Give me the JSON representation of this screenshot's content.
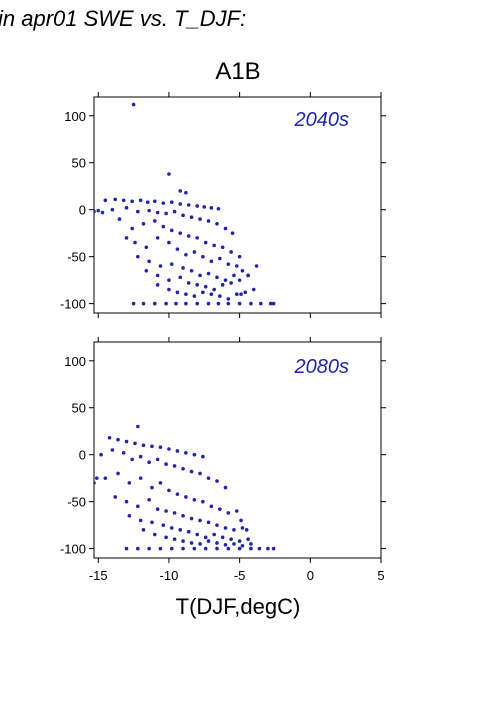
{
  "figure_title": "in apr01 SWE vs. T_DJF:",
  "chart_data": {
    "type": "scatter",
    "title": "A1B",
    "xlabel": "T(DJF,degC)",
    "ylabel": "",
    "xlim": [
      -15.3,
      5
    ],
    "ylim": [
      -110,
      120
    ],
    "x_ticks": [
      -15,
      -10,
      -5,
      0,
      5
    ],
    "x_tick_labels": [
      "-15",
      "-10",
      "-5",
      "0",
      "5"
    ],
    "y_ticks": [
      100,
      50,
      0,
      -50,
      -100
    ],
    "y_tick_labels": [
      "100",
      "50",
      "0",
      "-50",
      "-100"
    ],
    "marker_color": "#1f24a8",
    "panels": [
      {
        "label": "2040s",
        "series": [
          {
            "x": [
              -12.5,
              -10.0,
              -9.2,
              -8.8,
              -14.5,
              -13.8,
              -13.2,
              -12.6,
              -12.0,
              -11.5,
              -11.0,
              -10.4,
              -9.8,
              -9.2,
              -8.6,
              -8.0,
              -7.5,
              -7.0,
              -6.5,
              -14.0,
              -13.0,
              -12.2,
              -11.4,
              -10.8,
              -10.2,
              -9.6,
              -9.0,
              -8.4,
              -7.8,
              -7.2,
              -6.6,
              -6.0,
              -5.5,
              -13.5,
              -12.6,
              -11.8,
              -11.0,
              -10.4,
              -9.8,
              -9.2,
              -8.6,
              -8.0,
              -7.4,
              -6.8,
              -6.2,
              -5.6,
              -5.0,
              -13.0,
              -12.4,
              -11.6,
              -10.8,
              -10.0,
              -9.4,
              -8.8,
              -8.2,
              -7.6,
              -7.0,
              -6.4,
              -5.8,
              -5.2,
              -12.2,
              -11.4,
              -10.6,
              -9.8,
              -9.0,
              -8.4,
              -7.8,
              -7.2,
              -6.6,
              -6.0,
              -5.4,
              -4.8,
              -11.6,
              -10.8,
              -10.0,
              -9.2,
              -8.6,
              -8.0,
              -7.4,
              -6.8,
              -6.2,
              -5.6,
              -5.0,
              -4.4,
              -10.8,
              -10.0,
              -9.4,
              -8.8,
              -8.2,
              -7.6,
              -7.0,
              -6.4,
              -5.8,
              -5.2,
              -4.6,
              -4.0,
              -12.5,
              -11.8,
              -11.0,
              -10.2,
              -9.5,
              -8.8,
              -8.0,
              -7.2,
              -6.5,
              -5.8,
              -5.0,
              -4.2,
              -3.5,
              -2.8,
              -2.6,
              -15.3,
              -15.0,
              -14.7,
              -4.4,
              -3.8,
              -4.9
            ],
            "y": [
              112,
              38,
              20,
              18,
              10,
              11,
              10,
              9,
              10,
              8,
              9,
              7,
              8,
              6,
              5,
              4,
              3,
              2,
              1,
              0,
              2,
              -2,
              -1,
              -3,
              -4,
              -2,
              -6,
              -8,
              -10,
              -12,
              -15,
              -20,
              -25,
              -10,
              -20,
              -15,
              -12,
              -18,
              -22,
              -25,
              -28,
              -30,
              -35,
              -38,
              -40,
              -45,
              -50,
              -30,
              -35,
              -40,
              -30,
              -35,
              -42,
              -48,
              -45,
              -50,
              -55,
              -52,
              -58,
              -60,
              -50,
              -55,
              -60,
              -58,
              -62,
              -65,
              -70,
              -68,
              -72,
              -75,
              -70,
              -65,
              -65,
              -70,
              -75,
              -72,
              -78,
              -80,
              -82,
              -85,
              -80,
              -78,
              -75,
              -70,
              -80,
              -85,
              -88,
              -90,
              -92,
              -88,
              -90,
              -92,
              -95,
              -90,
              -88,
              -85,
              -100,
              -100,
              -100,
              -100,
              -100,
              -100,
              -100,
              -100,
              -100,
              -100,
              -100,
              -100,
              -100,
              -100,
              -100,
              -2,
              -1,
              -3,
              -70,
              -60,
              -90
            ]
          }
        ]
      },
      {
        "label": "2080s",
        "series": [
          {
            "x": [
              -12.2,
              -14.2,
              -13.6,
              -13.0,
              -12.4,
              -11.8,
              -11.2,
              -10.6,
              -10.0,
              -9.4,
              -8.8,
              -8.2,
              -7.6,
              -14.8,
              -14.0,
              -13.2,
              -12.6,
              -12.0,
              -11.4,
              -10.8,
              -10.2,
              -9.6,
              -9.0,
              -8.4,
              -7.8,
              -7.2,
              -6.6,
              -6.0,
              -14.5,
              -13.6,
              -12.8,
              -12.0,
              -11.2,
              -10.6,
              -10.0,
              -9.4,
              -8.8,
              -8.2,
              -7.6,
              -7.0,
              -6.4,
              -5.8,
              -5.2,
              -13.8,
              -13.0,
              -12.2,
              -11.4,
              -10.8,
              -10.2,
              -9.6,
              -9.0,
              -8.4,
              -7.8,
              -7.2,
              -6.6,
              -6.0,
              -5.4,
              -4.8,
              -12.8,
              -12.0,
              -11.2,
              -10.4,
              -9.8,
              -9.2,
              -8.6,
              -8.0,
              -7.4,
              -6.8,
              -6.2,
              -5.6,
              -5.0,
              -4.4,
              -11.8,
              -11.0,
              -10.2,
              -9.6,
              -9.0,
              -8.4,
              -7.8,
              -7.2,
              -6.6,
              -6.0,
              -5.4,
              -4.8,
              -4.2,
              -13.0,
              -12.2,
              -11.4,
              -10.6,
              -9.8,
              -9.0,
              -8.2,
              -7.4,
              -6.6,
              -5.8,
              -5.0,
              -4.2,
              -3.6,
              -3.0,
              -2.6,
              -15.3,
              -15.1,
              -4.5,
              -4.9
            ],
            "y": [
              30,
              18,
              16,
              14,
              12,
              10,
              9,
              8,
              6,
              4,
              2,
              0,
              -2,
              0,
              5,
              2,
              -5,
              -2,
              -8,
              -5,
              -10,
              -12,
              -15,
              -18,
              -20,
              -25,
              -28,
              -35,
              -25,
              -20,
              -30,
              -25,
              -35,
              -30,
              -38,
              -42,
              -45,
              -48,
              -50,
              -55,
              -58,
              -62,
              -60,
              -45,
              -50,
              -55,
              -48,
              -58,
              -60,
              -62,
              -65,
              -68,
              -70,
              -72,
              -75,
              -78,
              -80,
              -78,
              -65,
              -70,
              -72,
              -75,
              -78,
              -80,
              -82,
              -85,
              -88,
              -85,
              -88,
              -90,
              -92,
              -90,
              -80,
              -85,
              -88,
              -90,
              -92,
              -94,
              -95,
              -92,
              -94,
              -96,
              -95,
              -97,
              -95,
              -100,
              -100,
              -100,
              -100,
              -100,
              -100,
              -100,
              -100,
              -100,
              -100,
              -100,
              -100,
              -100,
              -100,
              -100,
              -30,
              -25,
              -80,
              -70
            ]
          }
        ]
      }
    ]
  }
}
